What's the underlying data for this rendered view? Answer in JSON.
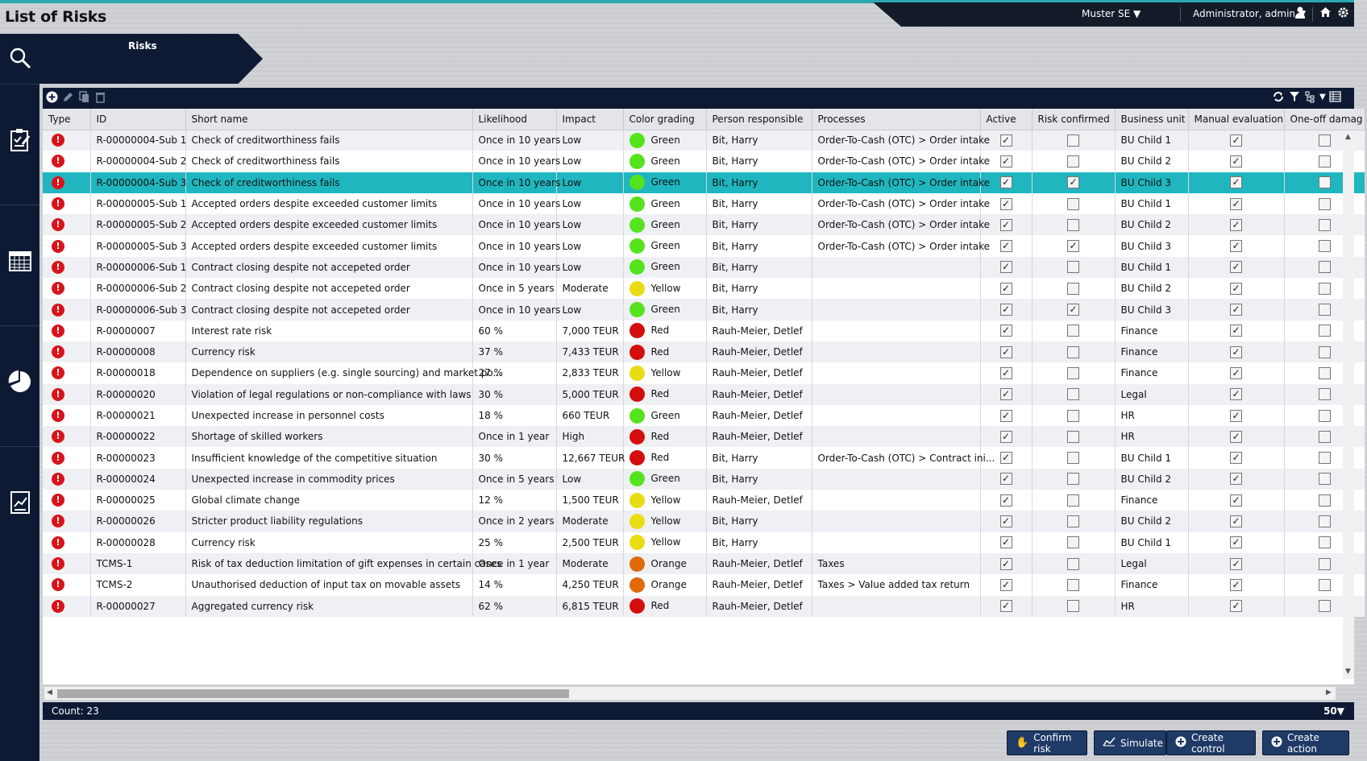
{
  "app": {
    "title": "List of Risks"
  },
  "header": {
    "tenant": "Muster SE ▼",
    "user": "Administrator, admin ▼"
  },
  "breadcrumb": {
    "label": "Risks"
  },
  "nav": [
    "search-icon",
    "checklist-icon",
    "calendar-icon",
    "pie-chart-icon",
    "report-icon"
  ],
  "table": {
    "columns": [
      "Type",
      "ID",
      "Short name",
      "Likelihood",
      "Impact",
      "Color grading",
      "Person responsible",
      "Processes",
      "Active",
      "Risk confirmed",
      "Business unit",
      "Manual evaluation",
      "One-off damag"
    ],
    "rows": [
      {
        "id": "R-00000004-Sub 1",
        "name": "Check of creditworthiness fails",
        "likelihood": "Once in 10 years",
        "impact": "Low",
        "grade": "Green",
        "color": "#54e31c",
        "person": "Bit, Harry",
        "process": "Order-To-Cash (OTC) > Order intake",
        "active": true,
        "confirmed": false,
        "bu": "BU Child 1",
        "manual": true,
        "oneoff": false
      },
      {
        "id": "R-00000004-Sub 2",
        "name": "Check of creditworthiness fails",
        "likelihood": "Once in 10 years",
        "impact": "Low",
        "grade": "Green",
        "color": "#54e31c",
        "person": "Bit, Harry",
        "process": "Order-To-Cash (OTC) > Order intake",
        "active": true,
        "confirmed": false,
        "bu": "BU Child 2",
        "manual": true,
        "oneoff": false
      },
      {
        "id": "R-00000004-Sub 3",
        "name": "Check of creditworthiness fails",
        "likelihood": "Once in 10 years",
        "impact": "Low",
        "grade": "Green",
        "color": "#54e31c",
        "person": "Bit, Harry",
        "process": "Order-To-Cash (OTC) > Order intake",
        "active": true,
        "confirmed": true,
        "bu": "BU Child 3",
        "manual": true,
        "oneoff": false,
        "selected": true
      },
      {
        "id": "R-00000005-Sub 1",
        "name": "Accepted orders despite exceeded customer limits",
        "likelihood": "Once in 10 years",
        "impact": "Low",
        "grade": "Green",
        "color": "#54e31c",
        "person": "Bit, Harry",
        "process": "Order-To-Cash (OTC) > Order intake",
        "active": true,
        "confirmed": false,
        "bu": "BU Child 1",
        "manual": true,
        "oneoff": false
      },
      {
        "id": "R-00000005-Sub 2",
        "name": "Accepted orders despite exceeded customer limits",
        "likelihood": "Once in 10 years",
        "impact": "Low",
        "grade": "Green",
        "color": "#54e31c",
        "person": "Bit, Harry",
        "process": "Order-To-Cash (OTC) > Order intake",
        "active": true,
        "confirmed": false,
        "bu": "BU Child 2",
        "manual": true,
        "oneoff": false
      },
      {
        "id": "R-00000005-Sub 3",
        "name": "Accepted orders despite exceeded customer limits",
        "likelihood": "Once in 10 years",
        "impact": "Low",
        "grade": "Green",
        "color": "#54e31c",
        "person": "Bit, Harry",
        "process": "Order-To-Cash (OTC) > Order intake",
        "active": true,
        "confirmed": true,
        "bu": "BU Child 3",
        "manual": true,
        "oneoff": false
      },
      {
        "id": "R-00000006-Sub 1",
        "name": "Contract closing despite not accepeted order",
        "likelihood": "Once in 10 years",
        "impact": "Low",
        "grade": "Green",
        "color": "#54e31c",
        "person": "Bit, Harry",
        "process": "",
        "active": true,
        "confirmed": false,
        "bu": "BU Child 1",
        "manual": true,
        "oneoff": false
      },
      {
        "id": "R-00000006-Sub 2",
        "name": "Contract closing despite not accepeted order",
        "likelihood": "Once in 5 years",
        "impact": "Moderate",
        "grade": "Yellow",
        "color": "#e9dc12",
        "person": "Bit, Harry",
        "process": "",
        "active": true,
        "confirmed": false,
        "bu": "BU Child 2",
        "manual": true,
        "oneoff": false
      },
      {
        "id": "R-00000006-Sub 3",
        "name": "Contract closing despite not accepeted order",
        "likelihood": "Once in 10 years",
        "impact": "Low",
        "grade": "Green",
        "color": "#54e31c",
        "person": "Bit, Harry",
        "process": "",
        "active": true,
        "confirmed": true,
        "bu": "BU Child 3",
        "manual": true,
        "oneoff": false
      },
      {
        "id": "R-00000007",
        "name": "Interest rate risk",
        "likelihood": "60 %",
        "impact": "7,000 TEUR",
        "grade": "Red",
        "color": "#d40d0d",
        "person": "Rauh-Meier, Detlef",
        "process": "",
        "active": true,
        "confirmed": false,
        "bu": "Finance",
        "manual": true,
        "oneoff": false
      },
      {
        "id": "R-00000008",
        "name": "Currency risk",
        "likelihood": "37 %",
        "impact": "7,433 TEUR",
        "grade": "Red",
        "color": "#d40d0d",
        "person": "Rauh-Meier, Detlef",
        "process": "",
        "active": true,
        "confirmed": false,
        "bu": "Finance",
        "manual": true,
        "oneoff": false
      },
      {
        "id": "R-00000018",
        "name": "Dependence on suppliers (e.g. single sourcing) and market po...",
        "likelihood": "27 %",
        "impact": "2,833 TEUR",
        "grade": "Yellow",
        "color": "#e9dc12",
        "person": "Rauh-Meier, Detlef",
        "process": "",
        "active": true,
        "confirmed": false,
        "bu": "Finance",
        "manual": true,
        "oneoff": false
      },
      {
        "id": "R-00000020",
        "name": "Violation of legal regulations or non-compliance with laws",
        "likelihood": "30 %",
        "impact": "5,000 TEUR",
        "grade": "Red",
        "color": "#d40d0d",
        "person": "Rauh-Meier, Detlef",
        "process": "",
        "active": true,
        "confirmed": false,
        "bu": "Legal",
        "manual": true,
        "oneoff": false
      },
      {
        "id": "R-00000021",
        "name": "Unexpected increase in personnel costs",
        "likelihood": "18 %",
        "impact": "660 TEUR",
        "grade": "Green",
        "color": "#54e31c",
        "person": "Rauh-Meier, Detlef",
        "process": "",
        "active": true,
        "confirmed": false,
        "bu": "HR",
        "manual": true,
        "oneoff": false
      },
      {
        "id": "R-00000022",
        "name": "Shortage of skilled workers",
        "likelihood": "Once in 1 year",
        "impact": "High",
        "grade": "Red",
        "color": "#d40d0d",
        "person": "Rauh-Meier, Detlef",
        "process": "",
        "active": true,
        "confirmed": false,
        "bu": "HR",
        "manual": true,
        "oneoff": false
      },
      {
        "id": "R-00000023",
        "name": "Insufficient knowledge of the competitive situation",
        "likelihood": "30 %",
        "impact": "12,667 TEUR",
        "grade": "Red",
        "color": "#d40d0d",
        "person": "Bit, Harry",
        "process": "Order-To-Cash (OTC) > Contract ini...",
        "active": true,
        "confirmed": false,
        "bu": "BU Child 1",
        "manual": true,
        "oneoff": false
      },
      {
        "id": "R-00000024",
        "name": "Unexpected increase in commodity prices",
        "likelihood": "Once in 5 years",
        "impact": "Low",
        "grade": "Green",
        "color": "#54e31c",
        "person": "Bit, Harry",
        "process": "",
        "active": true,
        "confirmed": false,
        "bu": "BU Child 2",
        "manual": true,
        "oneoff": false
      },
      {
        "id": "R-00000025",
        "name": "Global climate change",
        "likelihood": "12 %",
        "impact": "1,500 TEUR",
        "grade": "Yellow",
        "color": "#e9dc12",
        "person": "Rauh-Meier, Detlef",
        "process": "",
        "active": true,
        "confirmed": false,
        "bu": "Finance",
        "manual": true,
        "oneoff": false
      },
      {
        "id": "R-00000026",
        "name": "Stricter product liability regulations",
        "likelihood": "Once in 2 years",
        "impact": "Moderate",
        "grade": "Yellow",
        "color": "#e9dc12",
        "person": "Bit, Harry",
        "process": "",
        "active": true,
        "confirmed": false,
        "bu": "BU Child 2",
        "manual": true,
        "oneoff": false
      },
      {
        "id": "R-00000028",
        "name": "Currency risk",
        "likelihood": "25 %",
        "impact": "2,500 TEUR",
        "grade": "Yellow",
        "color": "#e9dc12",
        "person": "Bit, Harry",
        "process": "",
        "active": true,
        "confirmed": false,
        "bu": "BU Child 1",
        "manual": true,
        "oneoff": false
      },
      {
        "id": "TCMS-1",
        "name": "Risk of tax deduction limitation of gift expenses in certain cases",
        "likelihood": "Once in 1 year",
        "impact": "Moderate",
        "grade": "Orange",
        "color": "#e06a0c",
        "person": "Rauh-Meier, Detlef",
        "process": "Taxes",
        "active": true,
        "confirmed": false,
        "bu": "Legal",
        "manual": true,
        "oneoff": false
      },
      {
        "id": "TCMS-2",
        "name": "Unauthorised deduction of input tax on movable assets",
        "likelihood": "14 %",
        "impact": "4,250 TEUR",
        "grade": "Orange",
        "color": "#e06a0c",
        "person": "Rauh-Meier, Detlef",
        "process": "Taxes > Value added tax return",
        "active": true,
        "confirmed": false,
        "bu": "Finance",
        "manual": true,
        "oneoff": false
      },
      {
        "id": "R-00000027",
        "name": "Aggregated currency risk",
        "likelihood": "62 %",
        "impact": "6,815 TEUR",
        "grade": "Red",
        "color": "#d40d0d",
        "person": "Rauh-Meier, Detlef",
        "process": "",
        "active": true,
        "confirmed": false,
        "bu": "HR",
        "manual": true,
        "oneoff": false
      }
    ]
  },
  "status": {
    "count": "Count: 23",
    "page_size": "50▼"
  },
  "actions": {
    "confirm": "Confirm risk",
    "simulate": "Simulate",
    "create_control": "Create control",
    "create_action": "Create action"
  }
}
